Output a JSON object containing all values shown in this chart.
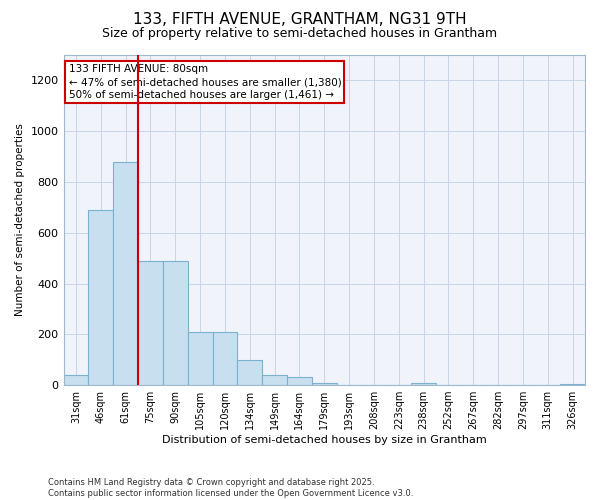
{
  "title1": "133, FIFTH AVENUE, GRANTHAM, NG31 9TH",
  "title2": "Size of property relative to semi-detached houses in Grantham",
  "xlabel": "Distribution of semi-detached houses by size in Grantham",
  "ylabel": "Number of semi-detached properties",
  "categories": [
    "31sqm",
    "46sqm",
    "61sqm",
    "75sqm",
    "90sqm",
    "105sqm",
    "120sqm",
    "134sqm",
    "149sqm",
    "164sqm",
    "179sqm",
    "193sqm",
    "208sqm",
    "223sqm",
    "238sqm",
    "252sqm",
    "267sqm",
    "282sqm",
    "297sqm",
    "311sqm",
    "326sqm"
  ],
  "values": [
    40,
    690,
    880,
    490,
    490,
    210,
    210,
    100,
    40,
    30,
    10,
    0,
    0,
    0,
    10,
    0,
    0,
    0,
    0,
    0,
    5
  ],
  "bar_color": "#c8dff0",
  "bar_edge_color": "#7ab0d0",
  "vline_color": "#cc0000",
  "vline_pos": 3.0,
  "annotation_title": "133 FIFTH AVENUE: 80sqm",
  "annotation_line1": "← 47% of semi-detached houses are smaller (1,380)",
  "annotation_line2": "50% of semi-detached houses are larger (1,461) →",
  "ylim": [
    0,
    1300
  ],
  "yticks": [
    0,
    200,
    400,
    600,
    800,
    1000,
    1200
  ],
  "footnote1": "Contains HM Land Registry data © Crown copyright and database right 2025.",
  "footnote2": "Contains public sector information licensed under the Open Government Licence v3.0.",
  "bg_color": "#ffffff",
  "plot_bg_color": "#f0f4fa",
  "grid_color": "#c8d4e8",
  "title1_fontsize": 11,
  "title2_fontsize": 9,
  "tick_fontsize": 7,
  "xlabel_fontsize": 8,
  "ylabel_fontsize": 7.5,
  "annot_fontsize": 7.5,
  "footnote_fontsize": 6
}
